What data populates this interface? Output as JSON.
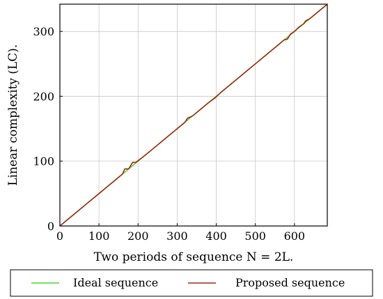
{
  "chart_data": {
    "type": "line",
    "xlabel": "Two periods of sequence N = 2L.",
    "ylabel": "Linear complexity (LC).",
    "xlim": [
      0,
      684
    ],
    "ylim": [
      0,
      342
    ],
    "xticks": [
      0,
      100,
      200,
      300,
      400,
      500,
      600
    ],
    "yticks": [
      0,
      100,
      200,
      300
    ],
    "grid": true,
    "legend_position": "bottom",
    "series": [
      {
        "name": "Ideal sequence",
        "color": "#4fd62a",
        "x": [
          0,
          684
        ],
        "y": [
          0,
          342
        ]
      },
      {
        "name": "Proposed sequence",
        "color": "#9c2a12",
        "x": [
          0,
          20,
          40,
          60,
          80,
          100,
          120,
          140,
          160,
          166,
          176,
          186,
          194,
          220,
          240,
          260,
          280,
          300,
          320,
          326,
          340,
          360,
          380,
          398,
          410,
          420,
          430,
          440,
          450,
          460,
          480,
          500,
          520,
          540,
          560,
          574,
          582,
          590,
          600,
          612,
          624,
          628,
          640,
          652,
          664,
          676,
          684
        ],
        "y": [
          0,
          10,
          20,
          30,
          40,
          50,
          60,
          70,
          80,
          88,
          88,
          98,
          98,
          110,
          120,
          130,
          140,
          150,
          160,
          166,
          170,
          180,
          190,
          198,
          205,
          210,
          215,
          220,
          225,
          230,
          240,
          250,
          260,
          270,
          280,
          287,
          288,
          296,
          300,
          307,
          312,
          316,
          320,
          326,
          332,
          338,
          342
        ]
      }
    ]
  }
}
